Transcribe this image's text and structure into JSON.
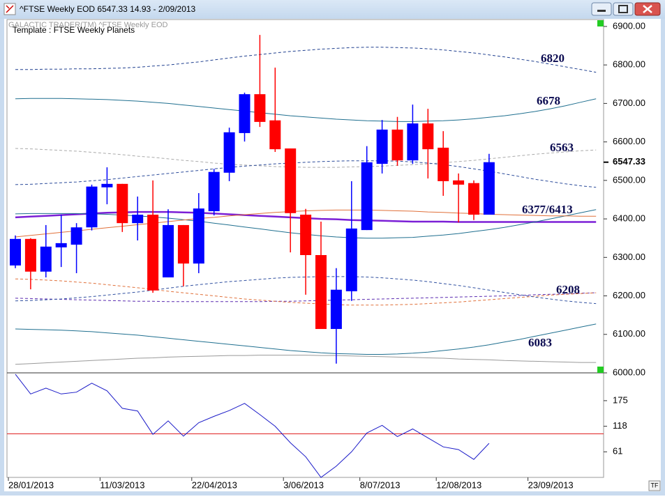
{
  "window": {
    "title": "^FTSE Weekly EOD  6547.33   14.93 - 2/09/2013",
    "watermark": "GALACTIC TRADER(TM)     ^FTSE Weekly EOD",
    "template": "Template : FTSE Weekly Planets",
    "corner_button": "TF"
  },
  "chart_data": [
    {
      "type": "candlestick",
      "categories": [
        "28/01/2013",
        null,
        null,
        null,
        null,
        null,
        "11/03/2013",
        null,
        null,
        null,
        null,
        null,
        "22/04/2013",
        null,
        null,
        null,
        null,
        null,
        "3/06/2013",
        null,
        null,
        null,
        null,
        "8/07/2013",
        null,
        null,
        null,
        null,
        "12/08/2013",
        null,
        null,
        null,
        null,
        null,
        "23/09/2013",
        null,
        null,
        null,
        null
      ],
      "open": [
        6279,
        6348,
        6263,
        6326,
        6333,
        6378,
        6482,
        6491,
        6389,
        6411,
        6248,
        6384,
        6284,
        6420,
        6520,
        6623,
        6724,
        6656,
        6583,
        6411,
        6306,
        6114,
        6212,
        6371,
        6543,
        6632,
        6552,
        6648,
        6585,
        6500,
        6493,
        6411,
        null,
        null,
        null,
        null,
        null,
        null,
        null
      ],
      "high": [
        6357,
        6350,
        6384,
        6411,
        6389,
        6489,
        6534,
        6491,
        6458,
        6500,
        6425,
        6384,
        6467,
        6530,
        6637,
        6728,
        6878,
        6793,
        6583,
        6426,
        6393,
        6272,
        6498,
        6589,
        6657,
        6665,
        6697,
        6686,
        6628,
        6518,
        6500,
        6569,
        null,
        null,
        null,
        null,
        null,
        null,
        null
      ],
      "low": [
        6272,
        6217,
        6248,
        6275,
        6259,
        6370,
        6438,
        6366,
        6344,
        6208,
        6248,
        6225,
        6259,
        6409,
        6498,
        6601,
        6639,
        6574,
        6313,
        6203,
        6114,
        6024,
        6187,
        6371,
        6518,
        6538,
        6543,
        6505,
        6460,
        6391,
        6397,
        6411,
        null,
        null,
        null,
        null,
        null,
        null,
        null
      ],
      "close": [
        6348,
        6263,
        6328,
        6337,
        6378,
        6484,
        6491,
        6389,
        6411,
        6214,
        6384,
        6284,
        6427,
        6522,
        6625,
        6724,
        6652,
        6581,
        6415,
        6306,
        6114,
        6216,
        6375,
        6547,
        6632,
        6552,
        6648,
        6581,
        6498,
        6489,
        6411,
        6547.33,
        null,
        null,
        null,
        null,
        null,
        null,
        null
      ],
      "up_color": "#0000ff",
      "down_color": "#ff0000",
      "last_price": 6547.33,
      "ylim": [
        6000,
        6918
      ],
      "yticks": [
        {
          "value": 6000,
          "label": "6000.00"
        },
        {
          "value": 6100,
          "label": "6100.00"
        },
        {
          "value": 6200,
          "label": "6200.00"
        },
        {
          "value": 6300,
          "label": "6300.00"
        },
        {
          "value": 6400,
          "label": "6400.00"
        },
        {
          "value": 6500,
          "label": "6500.00"
        },
        {
          "value": 6600,
          "label": "6600.00"
        },
        {
          "value": 6700,
          "label": "6700.00"
        },
        {
          "value": 6800,
          "label": "6800.00"
        },
        {
          "value": 6900,
          "label": "6900.00"
        }
      ],
      "bands": [
        {
          "label": "6820",
          "color": "#1f3f8f",
          "dash": true,
          "width": 1,
          "values": [
            6788,
            6788,
            6789,
            6789,
            6790,
            6790,
            6791,
            6792,
            6794,
            6797,
            6800,
            6804,
            6808,
            6813,
            6818,
            6823,
            6827,
            6831,
            6835,
            6838,
            6841,
            6843,
            6845,
            6846,
            6846,
            6845,
            6844,
            6842,
            6839,
            6835,
            6831,
            6826,
            6821,
            6815,
            6809,
            6802,
            6795,
            6788,
            6781
          ]
        },
        {
          "label": "6678",
          "color": "#1f6f8f",
          "dash": false,
          "width": 1,
          "values": [
            6712,
            6713,
            6713,
            6713,
            6712,
            6711,
            6710,
            6708,
            6706,
            6703,
            6700,
            6696,
            6692,
            6688,
            6684,
            6680,
            6676,
            6672,
            6668,
            6665,
            6662,
            6659,
            6657,
            6655,
            6654,
            6653,
            6653,
            6654,
            6655,
            6657,
            6660,
            6664,
            6668,
            6673,
            6679,
            6686,
            6694,
            6703,
            6712
          ]
        },
        {
          "label": "6563",
          "color": "#aaaaaa",
          "dash": true,
          "width": 1,
          "values": [
            6583,
            6582,
            6580,
            6578,
            6576,
            6573,
            6570,
            6567,
            6563,
            6560,
            6556,
            6552,
            6549,
            6545,
            6542,
            6540,
            6538,
            6536,
            6535,
            6534,
            6534,
            6534,
            6535,
            6536,
            6537,
            6539,
            6541,
            6543,
            6546,
            6549,
            6552,
            6556,
            6560,
            6564,
            6568,
            6571,
            6574,
            6577,
            6579
          ]
        },
        {
          "color": "#2a4a9a",
          "dash": true,
          "width": 1,
          "values": [
            6489,
            6490,
            6492,
            6494,
            6496,
            6499,
            6502,
            6506,
            6510,
            6514,
            6518,
            6522,
            6526,
            6530,
            6534,
            6537,
            6540,
            6543,
            6545,
            6547,
            6549,
            6550,
            6551,
            6551,
            6551,
            6550,
            6548,
            6545,
            6541,
            6536,
            6530,
            6524,
            6517,
            6510,
            6503,
            6497,
            6491,
            6486,
            6482
          ]
        },
        {
          "label": "6377/6413",
          "color": "#7b1fd6",
          "dash": false,
          "width": 2.5,
          "values": [
            6404,
            6406,
            6408,
            6410,
            6412,
            6414,
            6416,
            6417,
            6418,
            6418,
            6418,
            6417,
            6416,
            6414,
            6412,
            6410,
            6408,
            6406,
            6404,
            6402,
            6400,
            6399,
            6397,
            6396,
            6395,
            6394,
            6393,
            6393,
            6393,
            6392,
            6392,
            6392,
            6392,
            6392,
            6392,
            6392,
            6392,
            6392,
            6392
          ]
        },
        {
          "color": "#1f6f8f",
          "dash": false,
          "width": 1,
          "values": [
            6413,
            6414,
            6414,
            6414,
            6414,
            6413,
            6412,
            6410,
            6408,
            6405,
            6402,
            6398,
            6394,
            6389,
            6384,
            6379,
            6374,
            6369,
            6364,
            6360,
            6356,
            6353,
            6351,
            6350,
            6350,
            6351,
            6352,
            6355,
            6358,
            6362,
            6367,
            6372,
            6378,
            6385,
            6392,
            6400,
            6408,
            6416,
            6424
          ]
        },
        {
          "color": "#e0703a",
          "dash": false,
          "width": 1,
          "values": [
            6353,
            6357,
            6361,
            6365,
            6369,
            6373,
            6377,
            6381,
            6385,
            6389,
            6393,
            6397,
            6401,
            6404,
            6408,
            6411,
            6414,
            6417,
            6419,
            6421,
            6422,
            6423,
            6423,
            6423,
            6422,
            6421,
            6420,
            6418,
            6417,
            6415,
            6414,
            6412,
            6411,
            6410,
            6409,
            6408,
            6408,
            6407,
            6407
          ]
        },
        {
          "label": "6208",
          "color": "#5a2ab0",
          "dash": true,
          "width": 1,
          "values": [
            6194,
            6193,
            6192,
            6191,
            6190,
            6189,
            6188,
            6187,
            6186,
            6186,
            6185,
            6185,
            6185,
            6185,
            6185,
            6185,
            6185,
            6186,
            6186,
            6187,
            6188,
            6189,
            6190,
            6191,
            6192,
            6193,
            6194,
            6195,
            6196,
            6197,
            6198,
            6199,
            6200,
            6201,
            6203,
            6204,
            6205,
            6207,
            6208
          ]
        },
        {
          "color": "#e0703a",
          "dash": true,
          "width": 1,
          "values": [
            6244,
            6243,
            6241,
            6239,
            6236,
            6233,
            6229,
            6225,
            6221,
            6217,
            6212,
            6208,
            6204,
            6200,
            6196,
            6192,
            6189,
            6186,
            6183,
            6181,
            6179,
            6177,
            6176,
            6176,
            6176,
            6177,
            6178,
            6180,
            6182,
            6184,
            6187,
            6190,
            6193,
            6196,
            6199,
            6202,
            6204,
            6206,
            6208
          ]
        },
        {
          "color": "#3050a0",
          "dash": true,
          "width": 1,
          "values": [
            6187,
            6188,
            6190,
            6192,
            6195,
            6198,
            6202,
            6206,
            6210,
            6215,
            6220,
            6225,
            6229,
            6233,
            6237,
            6240,
            6243,
            6246,
            6248,
            6249,
            6250,
            6250,
            6250,
            6249,
            6247,
            6244,
            6241,
            6237,
            6232,
            6227,
            6221,
            6215,
            6209,
            6203,
            6197,
            6192,
            6187,
            6183,
            6180
          ]
        },
        {
          "label": "6083",
          "color": "#1f6f8f",
          "dash": false,
          "width": 1,
          "values": [
            6114,
            6113,
            6112,
            6111,
            6109,
            6107,
            6104,
            6101,
            6098,
            6094,
            6090,
            6086,
            6082,
            6078,
            6074,
            6070,
            6066,
            6062,
            6058,
            6055,
            6052,
            6050,
            6049,
            6048,
            6048,
            6049,
            6051,
            6054,
            6058,
            6062,
            6067,
            6073,
            6080,
            6087,
            6095,
            6103,
            6111,
            6119,
            6127
          ]
        },
        {
          "color": "#999999",
          "dash": false,
          "width": 1,
          "values": [
            6022,
            6024,
            6026,
            6028,
            6030,
            6032,
            6034,
            6036,
            6038,
            6039,
            6041,
            6042,
            6043,
            6044,
            6045,
            6045,
            6046,
            6046,
            6046,
            6046,
            6045,
            6045,
            6044,
            6043,
            6042,
            6041,
            6040,
            6039,
            6038,
            6036,
            6035,
            6034,
            6032,
            6031,
            6030,
            6029,
            6028,
            6027,
            6027
          ]
        }
      ]
    },
    {
      "type": "line",
      "color": "#1a1ac8",
      "values": [
        234,
        190,
        203,
        190,
        194,
        214,
        197,
        158,
        152,
        100,
        130,
        96,
        126,
        140,
        153,
        169,
        144,
        118,
        81,
        50,
        4,
        29,
        61,
        103,
        120,
        95,
        112,
        92,
        72,
        66,
        44,
        80,
        null,
        null,
        null,
        null,
        null,
        null,
        null
      ],
      "reference": 101,
      "reference_color": "#e02020",
      "ylim": [
        4,
        237
      ],
      "yticks": [
        61,
        118,
        175
      ]
    }
  ]
}
